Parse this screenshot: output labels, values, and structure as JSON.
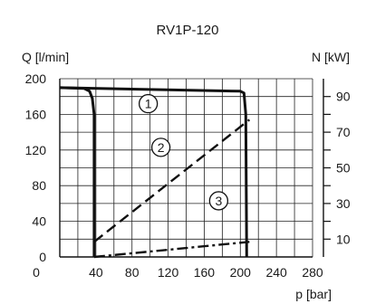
{
  "chart_data": {
    "type": "line",
    "title": "RV1P-120",
    "xlabel": "p [bar]",
    "ylabel_left": "Q  [l/min]",
    "ylabel_right": "N [kW]",
    "xlim": [
      0,
      280
    ],
    "ylim_left": [
      0,
      200
    ],
    "ylim_right": [
      0,
      100
    ],
    "x_ticks": [
      0,
      40,
      80,
      120,
      160,
      200,
      240,
      280
    ],
    "y_left_ticks": [
      0,
      40,
      80,
      120,
      160,
      200
    ],
    "y_right_ticks": [
      10,
      30,
      50,
      70,
      90
    ],
    "grid": true,
    "series": [
      {
        "name": "1",
        "style": "solid",
        "points": [
          [
            0,
            190
          ],
          [
            27,
            189
          ],
          [
            33,
            186
          ],
          [
            36,
            178
          ],
          [
            38,
            160
          ],
          [
            38,
            0
          ]
        ]
      },
      {
        "name": "1",
        "style": "solid",
        "points": [
          [
            0,
            190
          ],
          [
            200,
            186
          ],
          [
            204,
            184
          ],
          [
            206,
            160
          ],
          [
            207,
            0
          ]
        ]
      },
      {
        "name": "2",
        "style": "dashed",
        "points": [
          [
            38,
            17
          ],
          [
            210,
            154
          ]
        ]
      },
      {
        "name": "3",
        "style": "dashdot",
        "points": [
          [
            38,
            0
          ],
          [
            210,
            17
          ]
        ]
      }
    ],
    "annotations": [
      {
        "label": "1",
        "x": 98,
        "y": 172
      },
      {
        "label": "2",
        "x": 112,
        "y": 123
      },
      {
        "label": "3",
        "x": 176,
        "y": 63
      }
    ]
  }
}
